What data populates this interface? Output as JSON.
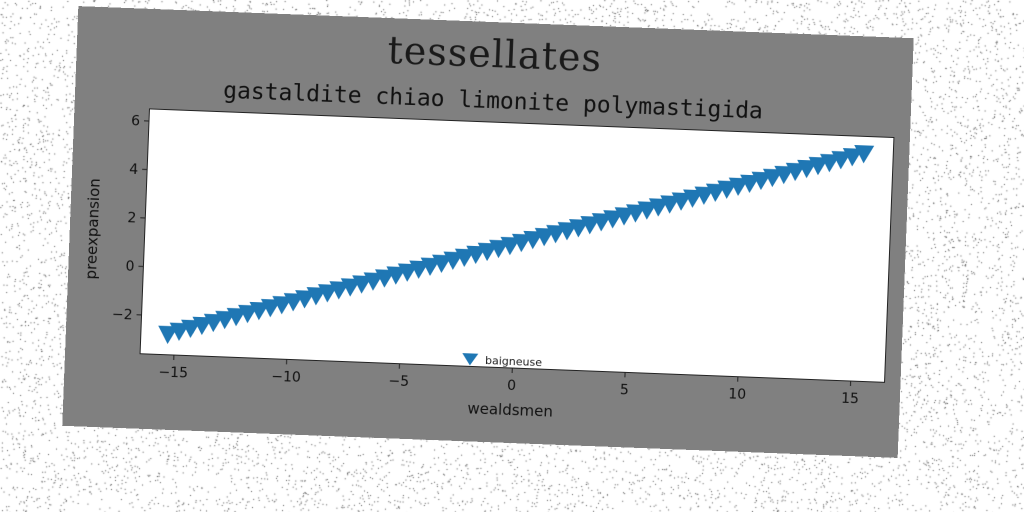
{
  "chart_data": {
    "type": "scatter",
    "title": "tessellates",
    "subtitle": "gastaldite chiao limonite polymastigida",
    "xlabel": "wealdsmen",
    "ylabel": "preexpansion",
    "xlim": [
      -16.5,
      16.5
    ],
    "ylim": [
      -3.6,
      6.5
    ],
    "xticks": [
      -15,
      -10,
      -5,
      0,
      5,
      10,
      15
    ],
    "yticks": [
      -2,
      0,
      2,
      4,
      6
    ],
    "legend_position": "lower center",
    "grid": false,
    "series": [
      {
        "name": "baigneuse",
        "marker": "triangle-down",
        "color": "#1f77b4",
        "x_start": -15.3,
        "x_end": 15.3,
        "x_step": 0.5,
        "y_intercept": 1.5,
        "y_slope": 0.28
      }
    ]
  }
}
